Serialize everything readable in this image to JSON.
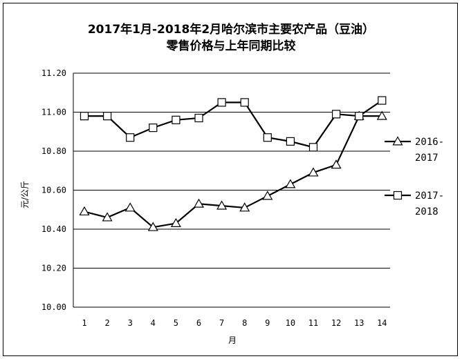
{
  "chart_data": {
    "type": "line",
    "title_line1": "2017年1月-2018年2月哈尔滨市主要农产品（豆油）",
    "title_line2": "零售价格与上年同期比较",
    "xlabel": "月",
    "ylabel": "元/公斤",
    "x": [
      1,
      2,
      3,
      4,
      5,
      6,
      7,
      8,
      9,
      10,
      11,
      12,
      13,
      14
    ],
    "x_tick_labels": [
      "1",
      "2",
      "3",
      "4",
      "5",
      "6",
      "7",
      "8",
      "9",
      "10",
      "11",
      "12",
      "13",
      "14"
    ],
    "ylim": [
      10.0,
      11.2
    ],
    "y_ticks": [
      10.0,
      10.2,
      10.4,
      10.6,
      10.8,
      11.0,
      11.2
    ],
    "y_tick_labels": [
      "10.00",
      "10.20",
      "10.40",
      "10.60",
      "10.80",
      "11.00",
      "11.20"
    ],
    "grid": true,
    "legend_position": "right",
    "series": [
      {
        "name_lines": [
          "2016-",
          "2017"
        ],
        "marker": "triangle",
        "color": "#000000",
        "values": [
          10.49,
          10.46,
          10.51,
          10.41,
          10.43,
          10.53,
          10.52,
          10.51,
          10.57,
          10.63,
          10.69,
          10.73,
          10.98,
          10.98
        ]
      },
      {
        "name_lines": [
          "2017-",
          "2018"
        ],
        "marker": "square",
        "color": "#000000",
        "values": [
          10.98,
          10.98,
          10.87,
          10.92,
          10.96,
          10.97,
          11.05,
          11.05,
          10.87,
          10.85,
          10.82,
          10.99,
          10.98,
          11.06
        ]
      }
    ]
  }
}
